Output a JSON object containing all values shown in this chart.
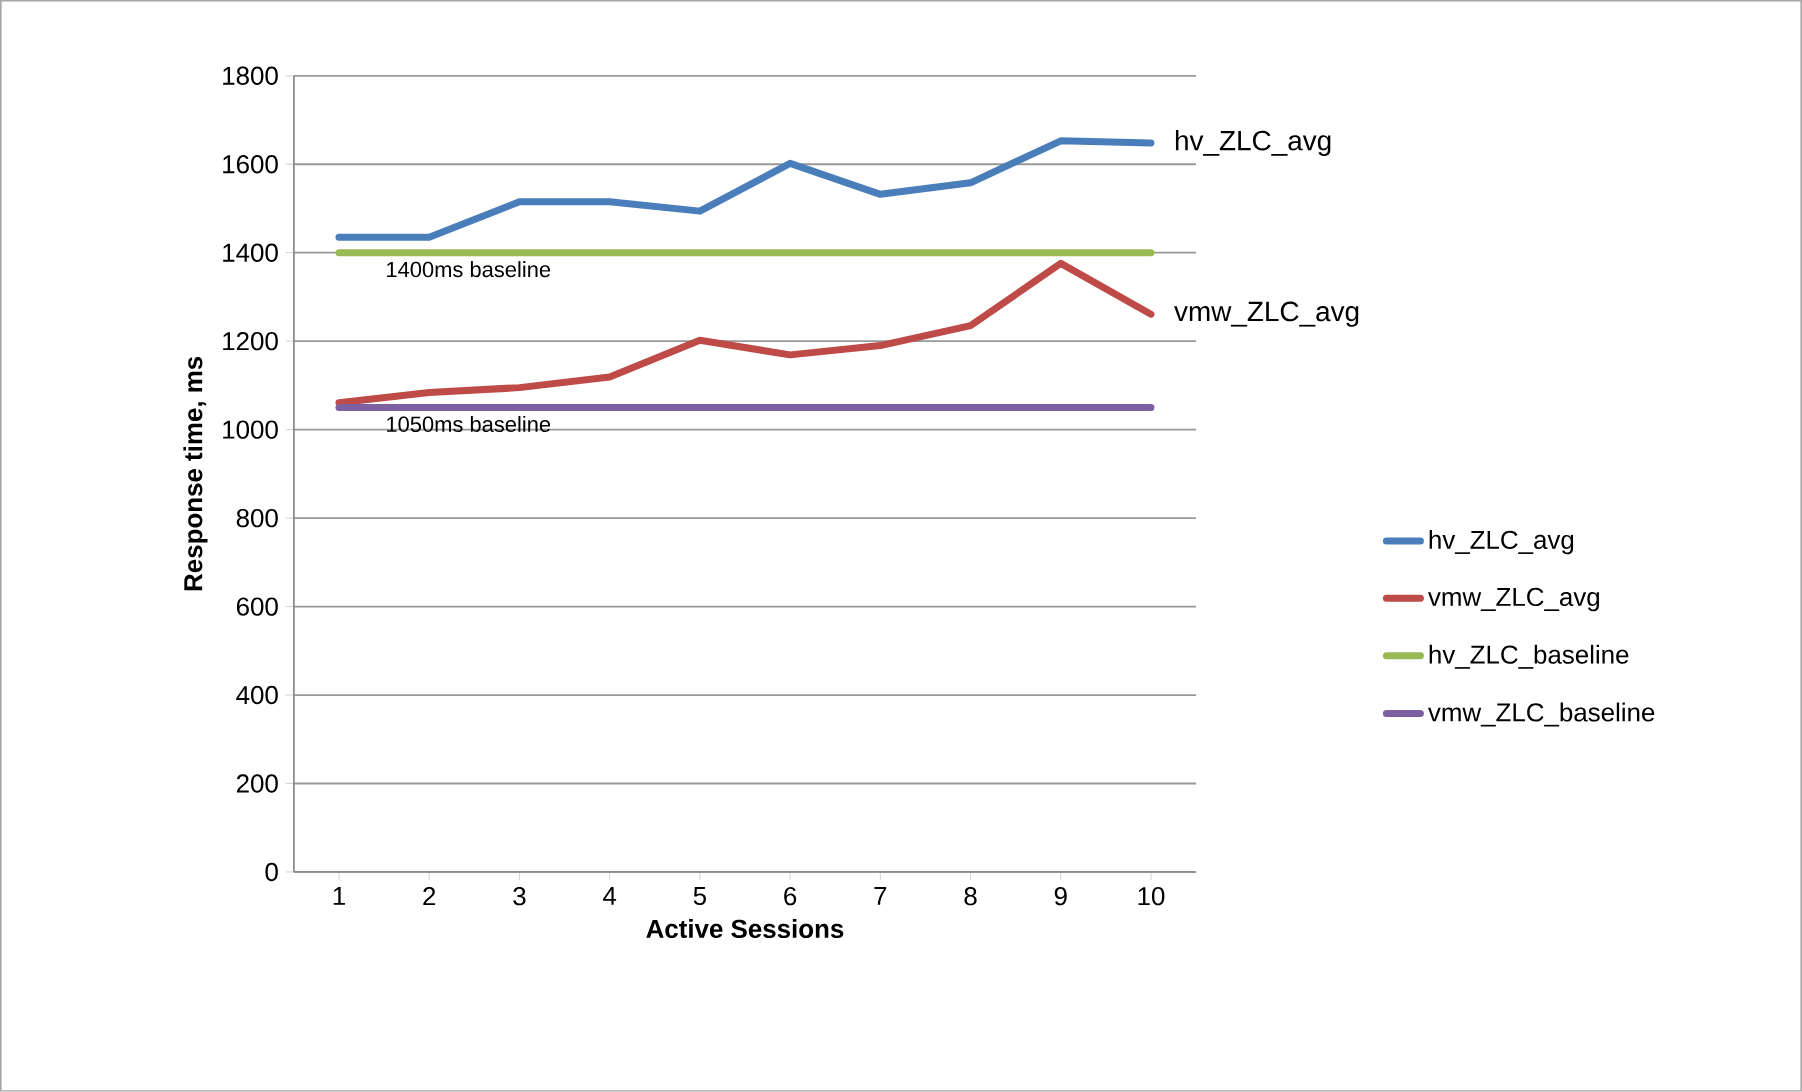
{
  "chart_data": {
    "type": "line",
    "xlabel": "Active Sessions",
    "ylabel": "Response time, ms",
    "x": [
      1,
      2,
      3,
      4,
      5,
      6,
      7,
      8,
      9,
      10
    ],
    "xlim": [
      0.5,
      10.5
    ],
    "xticks": [
      1,
      2,
      3,
      4,
      5,
      6,
      7,
      8,
      9,
      10
    ],
    "ylim": [
      0,
      1800
    ],
    "yticks": [
      0,
      200,
      400,
      600,
      800,
      1000,
      1200,
      1400,
      1600,
      1800
    ],
    "grid": "y",
    "legend": "right",
    "marker": "none",
    "line_style": "solid",
    "series": [
      {
        "name": "hv_ZLC_avg",
        "color": "#4a7ebb",
        "values": [
          1435,
          1435,
          1515,
          1515,
          1494,
          1602,
          1532,
          1558,
          1653,
          1648
        ]
      },
      {
        "name": "vmw_ZLC_avg",
        "color": "#be4b48",
        "values": [
          1061,
          1084,
          1095,
          1119,
          1202,
          1169,
          1190,
          1235,
          1376,
          1261
        ]
      },
      {
        "name": "hv_ZLC_baseline",
        "color": "#98b954",
        "values": [
          1400,
          1400,
          1400,
          1400,
          1400,
          1400,
          1400,
          1400,
          1400,
          1400
        ]
      },
      {
        "name": "vmw_ZLC_baseline",
        "color": "#7d60a0",
        "values": [
          1050,
          1050,
          1050,
          1050,
          1050,
          1050,
          1050,
          1050,
          1050,
          1050
        ]
      }
    ],
    "annotations": [
      {
        "text": "1400ms baseline",
        "y": 1400
      },
      {
        "text": "1050ms baseline",
        "y": 1050
      },
      "hv_ZLC_avg",
      "vmw_ZLC_avg"
    ]
  }
}
